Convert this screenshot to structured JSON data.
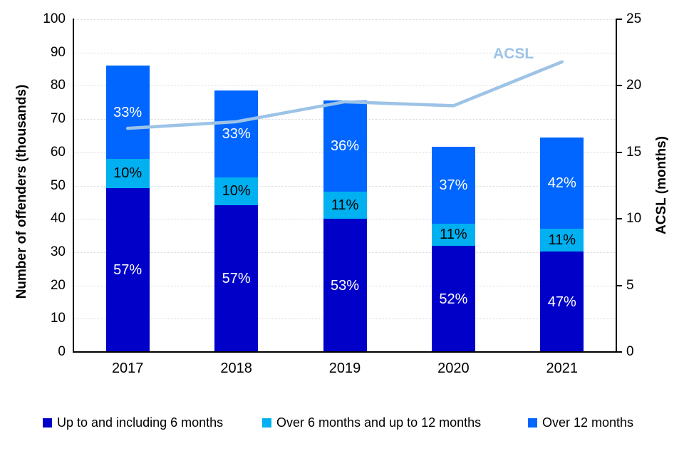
{
  "chart_data": {
    "type": "bar",
    "subtype": "stacked-bars-with-line-overlay",
    "title": "",
    "categories": [
      "2017",
      "2018",
      "2019",
      "2020",
      "2021"
    ],
    "series": [
      {
        "name": "Up to and including 6 months",
        "color": "#0000C8",
        "label_text_color": "#FFFFFF",
        "values": [
          49.3,
          44.2,
          40.0,
          31.9,
          30.1
        ],
        "percent_labels": [
          "57%",
          "57%",
          "53%",
          "52%",
          "47%"
        ]
      },
      {
        "name": "Over 6 months and up to 12 months",
        "color": "#00B0F0",
        "label_text_color": "#000000",
        "values": [
          8.7,
          8.3,
          8.1,
          6.7,
          7.0
        ],
        "percent_labels": [
          "10%",
          "10%",
          "11%",
          "11%",
          "11%"
        ]
      },
      {
        "name": "Over 12 months",
        "color": "#0066FF",
        "label_text_color": "#FFFFFF",
        "values": [
          28.1,
          26.1,
          27.5,
          23.1,
          27.4
        ],
        "percent_labels": [
          "33%",
          "33%",
          "36%",
          "37%",
          "42%"
        ]
      }
    ],
    "bar_totals": [
      86.1,
      78.6,
      75.6,
      61.7,
      64.5
    ],
    "line_series": {
      "name": "ACSL",
      "label": "ACSL",
      "color": "#9DC3E6",
      "axis": "right",
      "values": [
        16.8,
        17.3,
        18.8,
        18.5,
        21.8
      ]
    },
    "ylabel": "Number of offenders (thousands)",
    "y2label": "ACSL (months)",
    "ylim": [
      0,
      100
    ],
    "y2lim": [
      0,
      25
    ],
    "yticks": [
      0,
      10,
      20,
      30,
      40,
      50,
      60,
      70,
      80,
      90,
      100
    ],
    "y2ticks": [
      0,
      5,
      10,
      15,
      20,
      25
    ],
    "grid": "horizontal-dotted",
    "legend_position": "bottom",
    "colors": {
      "gridline": "#D9D9D9",
      "axis": "#000000",
      "background": "#FFFFFF"
    }
  }
}
